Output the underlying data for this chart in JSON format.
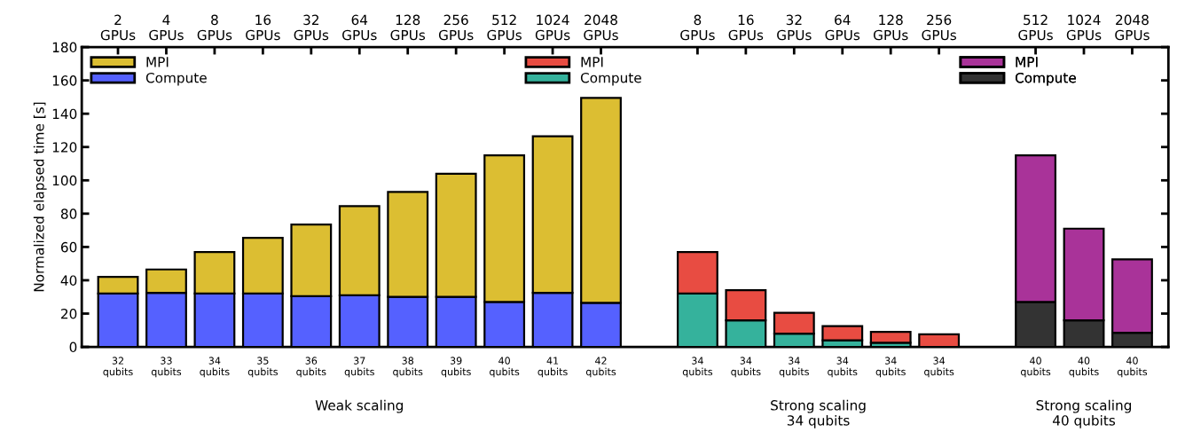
{
  "chart_data": {
    "type": "bar",
    "stacked": true,
    "ylabel": "Normalized elapsed time [s]",
    "categories": [
      "2\nGPUs",
      "4\nGPUs",
      "8\nGPUs",
      "16\nGPUs",
      "32\nGPUs",
      "64\nGPUs",
      "128\nGPUs",
      "256\nGPUs",
      "512\nGPUs",
      "1024\nGPUs",
      "2048\nGPUs",
      null,
      "8\nGPUs",
      "16\nGPUs",
      "32\nGPUs",
      "64\nGPUs",
      "128\nGPUs",
      "256\nGPUs",
      null,
      "512\nGPUs",
      "1024\nGPUs",
      "2048\nGPUs"
    ],
    "series": [
      {
        "name": "Compute",
        "color": "#5561ff",
        "values": [
          32,
          32.5,
          32,
          32,
          30.5,
          31,
          30,
          30,
          27,
          32.5,
          26.5,
          null,
          null,
          null,
          null,
          null,
          null,
          null,
          null,
          null,
          null,
          null
        ]
      },
      {
        "name": "MPI",
        "color": "#dcbe32",
        "values": [
          10,
          14,
          25,
          33.5,
          43,
          53.5,
          63,
          74,
          88,
          94,
          123,
          null,
          null,
          null,
          null,
          null,
          null,
          null,
          null,
          null,
          null,
          null
        ]
      },
      {
        "name": "Compute",
        "color": "#35b29c",
        "values": [
          null,
          null,
          null,
          null,
          null,
          null,
          null,
          null,
          null,
          null,
          null,
          null,
          32,
          16,
          8,
          4,
          2.5,
          null,
          null,
          null,
          null,
          null
        ]
      },
      {
        "name": "MPI",
        "color": "#e84c42",
        "values": [
          null,
          null,
          null,
          null,
          null,
          null,
          null,
          null,
          null,
          null,
          null,
          null,
          25,
          18,
          12.5,
          8.5,
          6.5,
          7.5,
          null,
          null,
          null,
          null
        ]
      },
      {
        "name": "Compute",
        "color": "#333333",
        "values": [
          null,
          null,
          null,
          null,
          null,
          null,
          null,
          null,
          null,
          null,
          null,
          null,
          null,
          null,
          null,
          null,
          null,
          null,
          null,
          27,
          16,
          8.5
        ]
      },
      {
        "name": "MPI",
        "color": "#a93399",
        "values": [
          null,
          null,
          null,
          null,
          null,
          null,
          null,
          null,
          null,
          null,
          null,
          null,
          null,
          null,
          null,
          null,
          null,
          null,
          null,
          88,
          55,
          44
        ]
      }
    ],
    "ylim": [
      0,
      180
    ],
    "yticks": [
      0,
      20,
      40,
      60,
      80,
      100,
      120,
      140,
      160,
      180
    ],
    "legend": "top",
    "grid": false,
    "annotations": [
      "32\nqubits",
      "33\nqubits",
      "34\nqubits",
      "35\nqubits",
      "36\nqubits",
      "37\nqubits",
      "38\nqubits",
      "39\nqubits",
      "40\nqubits",
      "41\nqubits",
      "42\nqubits",
      "34\nqubits",
      "34\nqubits",
      "34\nqubits",
      "34\nqubits",
      "34\nqubits",
      "34\nqubits",
      "40\nqubits",
      "40\nqubits",
      "40\nqubits",
      "Weak scaling",
      "Strong scaling\n34 qubits",
      "Strong scaling\n40 qubits"
    ]
  }
}
